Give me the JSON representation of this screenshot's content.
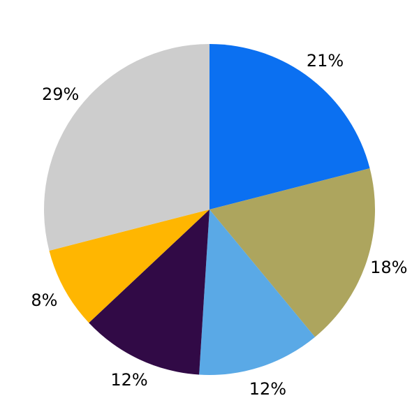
{
  "figure": {
    "background_color": "#ffffff",
    "text_color": "#000000"
  },
  "chart_data": {
    "type": "pie",
    "title": "",
    "legend": false,
    "labels": [
      "21%",
      "18%",
      "12%",
      "12%",
      "8%",
      "29%"
    ],
    "values": [
      21,
      18,
      12,
      12,
      8,
      29
    ],
    "colors": [
      "#0b70f1",
      "#ada55e",
      "#5aa9e6",
      "#310a46",
      "#ffb601",
      "#cdcdcd"
    ],
    "start_angle_deg": 90,
    "direction": "clockwise",
    "label_position": "outside"
  }
}
